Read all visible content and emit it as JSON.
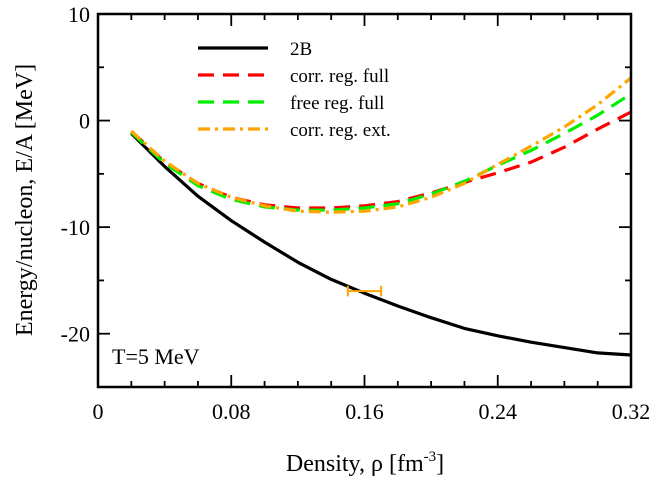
{
  "chart_data": {
    "type": "line",
    "xlabel": "Density, ρ [fm",
    "xlabel_sup": "-3",
    "xlabel_end": "]",
    "ylabel": "Energy/nucleon, E/A [MeV]",
    "xlim": [
      0,
      0.32
    ],
    "ylim": [
      -25,
      10
    ],
    "x_ticks": [
      "0",
      "0.08",
      "0.16",
      "0.24",
      "0.32"
    ],
    "y_ticks": [
      "10",
      "0",
      "-10",
      "-20"
    ],
    "annotation": "T=5 MeV",
    "legend_position": "top-right",
    "series": [
      {
        "name": "2B",
        "color": "#000000",
        "dash": "solid",
        "x": [
          0.02,
          0.04,
          0.06,
          0.08,
          0.1,
          0.12,
          0.14,
          0.16,
          0.18,
          0.2,
          0.22,
          0.24,
          0.26,
          0.28,
          0.3,
          0.32
        ],
        "y": [
          -1.2,
          -4.3,
          -7.1,
          -9.4,
          -11.4,
          -13.3,
          -14.9,
          -16.2,
          -17.4,
          -18.5,
          -19.5,
          -20.2,
          -20.8,
          -21.3,
          -21.8,
          -22.0
        ]
      },
      {
        "name": "corr. reg. full",
        "color": "#ff0000",
        "dash": "dashed",
        "x": [
          0.02,
          0.04,
          0.06,
          0.08,
          0.1,
          0.12,
          0.14,
          0.16,
          0.18,
          0.2,
          0.22,
          0.24,
          0.26,
          0.28,
          0.3,
          0.32
        ],
        "y": [
          -1.0,
          -3.9,
          -5.9,
          -7.2,
          -7.9,
          -8.2,
          -8.2,
          -8.0,
          -7.6,
          -6.8,
          -5.8,
          -4.9,
          -3.9,
          -2.5,
          -0.8,
          0.8
        ]
      },
      {
        "name": "free reg. full",
        "color": "#00ee00",
        "dash": "dashed",
        "x": [
          0.02,
          0.04,
          0.06,
          0.08,
          0.1,
          0.12,
          0.14,
          0.16,
          0.18,
          0.2,
          0.22,
          0.24,
          0.26,
          0.28,
          0.3,
          0.32
        ],
        "y": [
          -1.1,
          -4.0,
          -6.1,
          -7.4,
          -8.1,
          -8.4,
          -8.4,
          -8.2,
          -7.8,
          -6.9,
          -5.7,
          -4.2,
          -2.8,
          -1.2,
          0.5,
          2.5
        ]
      },
      {
        "name": "corr. reg. ext.",
        "color": "#ffa500",
        "dash": "dashdot",
        "x": [
          0.02,
          0.04,
          0.06,
          0.08,
          0.1,
          0.12,
          0.14,
          0.16,
          0.18,
          0.2,
          0.22,
          0.24,
          0.26,
          0.28,
          0.3,
          0.32
        ],
        "y": [
          -1.0,
          -3.8,
          -5.9,
          -7.2,
          -8.0,
          -8.5,
          -8.6,
          -8.5,
          -8.1,
          -7.2,
          -5.9,
          -4.1,
          -2.4,
          -0.6,
          1.5,
          4.0
        ]
      }
    ],
    "error_marker": {
      "color": "#ffa500",
      "x": 0.16,
      "y": -16.0,
      "xerr": 0.01,
      "yerr": 0.5
    }
  }
}
